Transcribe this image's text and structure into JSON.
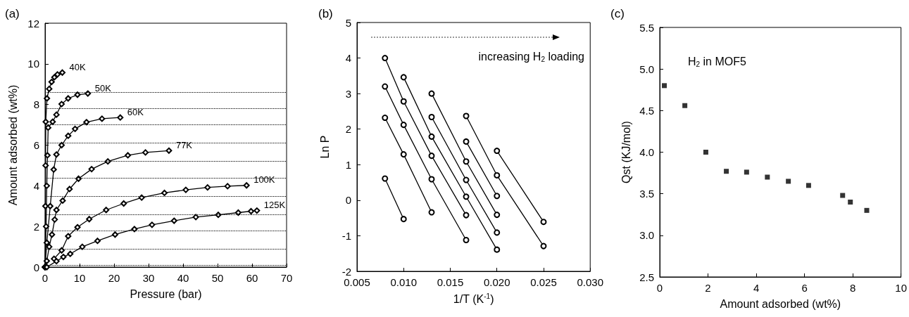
{
  "chart_data": [
    {
      "type": "line",
      "title": "(a)",
      "xlabel": "Pressure (bar)",
      "ylabel": "Amount adsorbed (wt%)",
      "marker": "diamond",
      "grid": false,
      "xlim": [
        0,
        70
      ],
      "xticks": [
        0,
        10,
        20,
        30,
        40,
        50,
        60,
        70
      ],
      "ylim": [
        0,
        12
      ],
      "yticks": [
        0,
        2,
        4,
        6,
        8,
        10,
        12
      ],
      "ref_lines": [
        {
          "axis": "y",
          "value": 8.6,
          "line_style": "dotted",
          "color": "#000000"
        },
        {
          "axis": "y",
          "value": 7.8,
          "line_style": "dotted",
          "color": "#000000"
        },
        {
          "axis": "y",
          "value": 7.0,
          "line_style": "dotted",
          "color": "#000000"
        },
        {
          "axis": "y",
          "value": 6.1,
          "line_style": "dotted",
          "color": "#000000"
        },
        {
          "axis": "y",
          "value": 5.2,
          "line_style": "dotted",
          "color": "#000000"
        },
        {
          "axis": "y",
          "value": 4.4,
          "line_style": "dotted",
          "color": "#000000"
        },
        {
          "axis": "y",
          "value": 3.5,
          "line_style": "dotted",
          "color": "#000000"
        },
        {
          "axis": "y",
          "value": 2.6,
          "line_style": "dotted",
          "color": "#000000"
        },
        {
          "axis": "y",
          "value": 1.8,
          "line_style": "dotted",
          "color": "#000000"
        },
        {
          "axis": "y",
          "value": 0.9,
          "line_style": "dotted",
          "color": "#000000"
        },
        {
          "axis": "y",
          "value": 0.1,
          "line_style": "dotted",
          "color": "#000000"
        }
      ],
      "series": [
        {
          "name": "40K",
          "color": "#000000",
          "x": [
            0,
            0.1,
            0.15,
            0.2,
            0.55,
            1.2,
            1.9,
            2.7,
            3.6,
            5.0
          ],
          "values": [
            0,
            3.0,
            5.0,
            7.15,
            8.3,
            8.77,
            9.11,
            9.34,
            9.48,
            9.57
          ]
        },
        {
          "name": "50K",
          "color": "#000000",
          "x": [
            0,
            0.3,
            0.5,
            0.7,
            0.9,
            2.2,
            3.3,
            4.8,
            6.7,
            9.4,
            12.4
          ],
          "values": [
            0,
            2.0,
            4.0,
            5.5,
            6.86,
            7.15,
            7.5,
            8.02,
            8.3,
            8.48,
            8.54
          ]
        },
        {
          "name": "60K",
          "color": "#000000",
          "x": [
            0,
            0.5,
            1.5,
            2.5,
            3.3,
            4.8,
            6.7,
            8.7,
            12.0,
            16.5,
            21.8
          ],
          "values": [
            0,
            1.2,
            3.0,
            4.8,
            5.54,
            6.0,
            6.46,
            6.8,
            7.13,
            7.3,
            7.36
          ]
        },
        {
          "name": "77K",
          "color": "#000000",
          "x": [
            0,
            0.5,
            1.2,
            2.0,
            2.8,
            3.3,
            5.1,
            7.1,
            9.7,
            13.5,
            18.2,
            24.0,
            29.1,
            35.9
          ],
          "values": [
            0,
            0.3,
            1.0,
            1.6,
            2.34,
            2.81,
            3.27,
            3.84,
            4.35,
            4.82,
            5.2,
            5.5,
            5.64,
            5.73
          ]
        },
        {
          "name": "100K",
          "color": "#000000",
          "x": [
            2.6,
            4.8,
            6.7,
            9.4,
            12.8,
            17.7,
            22.8,
            28.0,
            34.6,
            40.8,
            47.1,
            52.9,
            58.4
          ],
          "values": [
            0.41,
            0.82,
            1.52,
            1.96,
            2.36,
            2.81,
            3.13,
            3.42,
            3.65,
            3.8,
            3.92,
            3.98,
            4.02
          ]
        },
        {
          "name": "125K",
          "color": "#000000",
          "x": [
            0.5,
            3.3,
            5.3,
            7.3,
            10.8,
            15.2,
            20.3,
            25.9,
            31.0,
            37.4,
            43.7,
            50.2,
            56.0,
            59.7,
            61.4
          ],
          "values": [
            0,
            0.29,
            0.5,
            0.65,
            1.0,
            1.29,
            1.6,
            1.87,
            2.08,
            2.28,
            2.46,
            2.57,
            2.68,
            2.75,
            2.78
          ]
        }
      ]
    },
    {
      "type": "line",
      "title": "(b)",
      "xlabel": "1/T (K$^{-1}$)",
      "ylabel": "Ln P",
      "marker": "circle",
      "grid": false,
      "annotations": [
        "increasing H$_{2}$ loading"
      ],
      "xlim": [
        0.005,
        0.03
      ],
      "xticks": [
        {
          "value": 0.005,
          "label": "0.005"
        },
        {
          "value": 0.01,
          "label": "0.010"
        },
        {
          "value": 0.015,
          "label": "0.015"
        },
        {
          "value": 0.02,
          "label": "0.020"
        },
        {
          "value": 0.025,
          "label": "0.025"
        },
        {
          "value": 0.03,
          "label": "0.030"
        }
      ],
      "ylim": [
        -2,
        5
      ],
      "yticks": [
        -2,
        -1,
        0,
        1,
        2,
        3,
        4,
        5
      ],
      "series": [
        {
          "color": "#000000",
          "x": [
            0.008,
            0.01
          ],
          "values": [
            0.61,
            -0.53
          ]
        },
        {
          "color": "#000000",
          "x": [
            0.008,
            0.01,
            0.013
          ],
          "values": [
            2.32,
            1.29,
            -0.34
          ]
        },
        {
          "color": "#000000",
          "x": [
            0.008,
            0.01,
            0.013,
            0.0167
          ],
          "values": [
            3.2,
            2.12,
            0.59,
            -1.12
          ]
        },
        {
          "color": "#000000",
          "x": [
            0.008,
            0.01,
            0.013,
            0.0167
          ],
          "values": [
            4.0,
            2.78,
            1.25,
            -0.42
          ]
        },
        {
          "color": "#000000",
          "x": [
            0.01,
            0.013,
            0.0167,
            0.02
          ],
          "values": [
            3.46,
            1.79,
            0.1,
            -1.39
          ]
        },
        {
          "color": "#000000",
          "x": [
            0.013,
            0.0167,
            0.02
          ],
          "values": [
            2.34,
            0.57,
            -0.91
          ]
        },
        {
          "color": "#000000",
          "x": [
            0.013,
            0.0167,
            0.02
          ],
          "values": [
            3.0,
            1.09,
            -0.41
          ]
        },
        {
          "color": "#000000",
          "x": [
            0.0167,
            0.02
          ],
          "values": [
            1.65,
            0.12
          ]
        },
        {
          "color": "#000000",
          "x": [
            0.0167,
            0.02,
            0.025
          ],
          "values": [
            2.37,
            0.7,
            -1.29
          ]
        },
        {
          "color": "#000000",
          "x": [
            0.02,
            0.025
          ],
          "values": [
            1.39,
            -0.61
          ]
        }
      ]
    },
    {
      "type": "scatter",
      "title": "(c)",
      "xlabel": "Amount adsorbed (wt%)",
      "ylabel": "Qst (KJ/mol)",
      "marker": "square",
      "grid": false,
      "annotations": [
        "H$_{2}$ in MOF5"
      ],
      "xlim": [
        0,
        10
      ],
      "xticks": [
        0,
        2,
        4,
        6,
        8,
        10
      ],
      "ylim": [
        2.5,
        5.5
      ],
      "yticks": [
        {
          "value": 2.5,
          "label": "2.5"
        },
        {
          "value": 3.0,
          "label": "3.0"
        },
        {
          "value": 3.5,
          "label": "3.5"
        },
        {
          "value": 4.0,
          "label": "4.0"
        },
        {
          "value": 4.5,
          "label": "4.5"
        },
        {
          "value": 5.0,
          "label": "5.0"
        },
        {
          "value": 5.5,
          "label": "5.5"
        }
      ],
      "series": [
        {
          "color": "#000000",
          "x": [
            0.19,
            1.04,
            1.91,
            2.76,
            3.6,
            4.46,
            5.33,
            6.17,
            7.58,
            7.9,
            8.58
          ],
          "values": [
            4.8,
            4.56,
            4.0,
            3.77,
            3.76,
            3.7,
            3.65,
            3.6,
            3.48,
            3.4,
            3.3
          ]
        }
      ]
    }
  ]
}
